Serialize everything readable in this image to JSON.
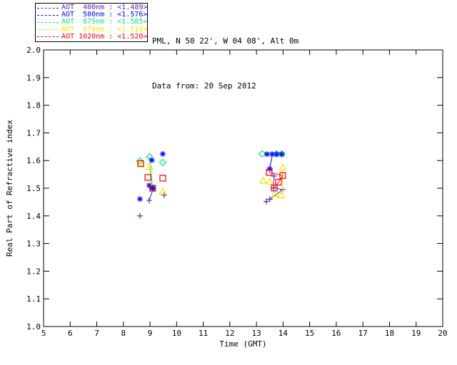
{
  "header": {
    "line1": "PML, N 50 22', W 04 08', Alt 0m",
    "line2": "Data from: 20 Sep 2012"
  },
  "legend": {
    "entries": [
      {
        "text": "AOT  400nm : <1.489>",
        "color": "#5a1fb4"
      },
      {
        "text": "AOT  500nm : <1.576>",
        "color": "#0000ff"
      },
      {
        "text": "AOT  675nm : <1.585>",
        "color": "#00e487"
      },
      {
        "text": "AOT  870nm : <1.519>",
        "color": "#f2e400"
      },
      {
        "text": "AOT 1020nm : <1.520>",
        "color": "#ff0000"
      }
    ]
  },
  "chart_data": {
    "type": "scatter",
    "title": "",
    "xlabel": "Time (GMT)",
    "ylabel": "Real Part of Refractive index",
    "xlim": [
      5,
      20
    ],
    "ylim": [
      1.0,
      2.0
    ],
    "xticks": [
      5,
      6,
      7,
      8,
      9,
      10,
      11,
      12,
      13,
      14,
      15,
      16,
      17,
      18,
      19,
      20
    ],
    "yticks": [
      "1.0",
      "1.1",
      "1.2",
      "1.3",
      "1.4",
      "1.5",
      "1.6",
      "1.7",
      "1.8",
      "1.9",
      "2.0"
    ],
    "grid": false,
    "legend_position": "top-left",
    "draw_order": [
      0,
      2,
      3,
      1,
      4
    ],
    "series": [
      {
        "name": "AOT 400nm",
        "mean": "<1.489>",
        "color": "#5a1fb4",
        "marker": "plus",
        "points": [
          [
            8.62,
            1.4
          ],
          [
            8.97,
            1.456
          ],
          [
            9.12,
            1.498
          ],
          [
            9.53,
            1.475
          ],
          [
            13.66,
            1.544
          ],
          [
            13.64,
            1.501
          ],
          [
            13.99,
            1.495
          ],
          [
            13.5,
            1.46
          ],
          [
            13.37,
            1.452
          ]
        ],
        "lines": [
          [
            [
              9.12,
              1.498
            ],
            [
              8.97,
              1.456
            ]
          ],
          [
            [
              13.66,
              1.544
            ],
            [
              13.64,
              1.501
            ],
            [
              13.99,
              1.495
            ],
            [
              13.5,
              1.46
            ]
          ]
        ]
      },
      {
        "name": "AOT 500nm",
        "mean": "<1.576>",
        "color": "#0000ff",
        "marker": "asterisk",
        "points": [
          [
            9.48,
            1.624
          ],
          [
            9.07,
            1.601
          ],
          [
            8.97,
            1.51
          ],
          [
            9.1,
            1.5
          ],
          [
            8.62,
            1.461
          ],
          [
            13.4,
            1.623
          ],
          [
            13.59,
            1.623
          ],
          [
            13.76,
            1.623
          ],
          [
            13.95,
            1.623
          ],
          [
            13.5,
            1.57
          ]
        ],
        "lines": [
          [
            [
              13.59,
              1.617
            ],
            [
              13.5,
              1.572
            ]
          ]
        ]
      },
      {
        "name": "AOT 675nm",
        "mean": "<1.585>",
        "color": "#00e487",
        "marker": "diamond",
        "points": [
          [
            8.62,
            1.598
          ],
          [
            8.98,
            1.613
          ],
          [
            9.48,
            1.593
          ],
          [
            9.1,
            1.499
          ],
          [
            13.22,
            1.624
          ],
          [
            13.75,
            1.624
          ],
          [
            13.96,
            1.624
          ]
        ],
        "lines": [
          [
            [
              8.98,
              1.613
            ],
            [
              9.1,
              1.499
            ]
          ]
        ]
      },
      {
        "name": "AOT 870nm",
        "mean": "<1.519>",
        "color": "#f2e400",
        "marker": "triangle",
        "points": [
          [
            8.65,
            1.59
          ],
          [
            8.98,
            1.578
          ],
          [
            9.48,
            1.487
          ],
          [
            13.99,
            1.575
          ],
          [
            13.25,
            1.527
          ],
          [
            13.5,
            1.523
          ],
          [
            13.69,
            1.479
          ],
          [
            13.93,
            1.474
          ]
        ],
        "lines": [
          [
            [
              8.98,
              1.578
            ],
            [
              9.06,
              1.512
            ]
          ],
          [
            [
              13.99,
              1.567
            ],
            [
              13.99,
              1.474
            ]
          ]
        ]
      },
      {
        "name": "AOT 1020nm",
        "mean": "<1.520>",
        "color": "#ff0000",
        "marker": "square",
        "points": [
          [
            8.65,
            1.589
          ],
          [
            8.92,
            1.539
          ],
          [
            9.48,
            1.536
          ],
          [
            9.1,
            1.5
          ],
          [
            13.48,
            1.557
          ],
          [
            13.99,
            1.546
          ],
          [
            13.83,
            1.522
          ],
          [
            13.67,
            1.501
          ]
        ],
        "lines": [
          [
            [
              13.48,
              1.557
            ],
            [
              13.99,
              1.546
            ],
            [
              13.83,
              1.522
            ],
            [
              13.67,
              1.501
            ]
          ]
        ]
      }
    ]
  }
}
